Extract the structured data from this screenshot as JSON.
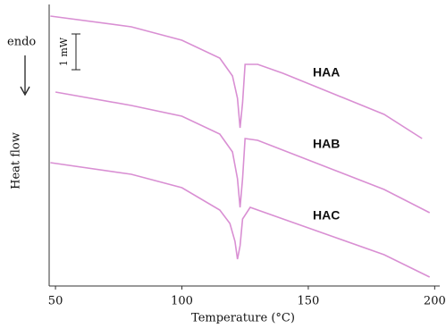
{
  "chart_data": {
    "type": "line",
    "x_label": "Temperature (°C)",
    "y_label": "Heat flow",
    "annotation": "endo",
    "scale_bar": {
      "value": 1,
      "label": "1 mW"
    },
    "xlim": [
      47.5,
      202
    ],
    "xticks": [
      50,
      100,
      150,
      200
    ],
    "ylim": [
      0,
      8
    ],
    "series": [
      {
        "name": "HAA",
        "color": "#d98fd3",
        "x": [
          48,
          80,
          100,
          115,
          120,
          122,
          123,
          124,
          125,
          130,
          140,
          160,
          180,
          195
        ],
        "values": [
          7.55,
          7.25,
          6.875,
          6.375,
          5.875,
          5.25,
          4.425,
          5.125,
          6.2,
          6.2,
          5.95,
          5.375,
          4.8,
          4.125
        ]
      },
      {
        "name": "HAB",
        "color": "#d98fd3",
        "x": [
          50,
          80,
          100,
          115,
          120,
          122,
          123,
          124,
          125,
          130,
          140,
          160,
          180,
          198
        ],
        "values": [
          5.425,
          5.05,
          4.75,
          4.25,
          3.75,
          3.0,
          2.2,
          3.0,
          4.125,
          4.075,
          3.8,
          3.25,
          2.7,
          2.05
        ]
      },
      {
        "name": "HAC",
        "color": "#d98fd3",
        "x": [
          48,
          80,
          100,
          115,
          119,
          121,
          122,
          123,
          124,
          127,
          140,
          160,
          180,
          198
        ],
        "values": [
          3.45,
          3.125,
          2.75,
          2.125,
          1.75,
          1.25,
          0.75,
          1.125,
          1.875,
          2.2,
          1.875,
          1.375,
          0.875,
          0.25
        ]
      }
    ]
  }
}
